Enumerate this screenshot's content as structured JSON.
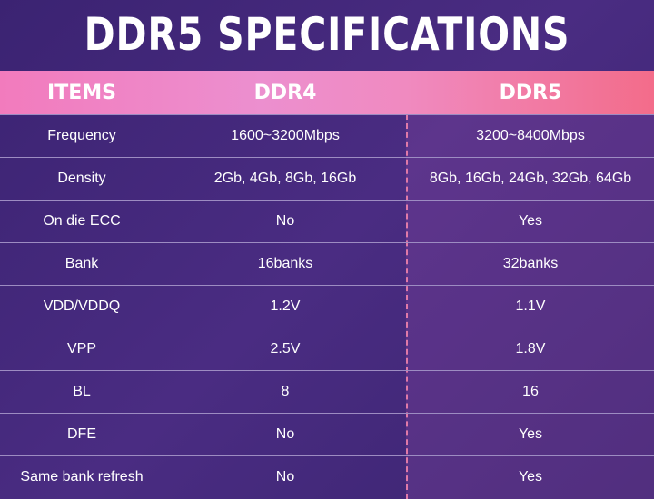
{
  "header": {
    "title": "DDR5 SPECIFICATIONS"
  },
  "table": {
    "columns": [
      "ITEMS",
      "DDR4",
      "DDR5"
    ],
    "rows": [
      [
        "Frequency",
        "1600~3200Mbps",
        "3200~8400Mbps"
      ],
      [
        "Density",
        "2Gb, 4Gb, 8Gb, 16Gb",
        "8Gb, 16Gb, 24Gb, 32Gb, 64Gb"
      ],
      [
        "On die ECC",
        "No",
        "Yes"
      ],
      [
        "Bank",
        "16banks",
        "32banks"
      ],
      [
        "VDD/VDDQ",
        "1.2V",
        "1.1V"
      ],
      [
        "VPP",
        "2.5V",
        "1.8V"
      ],
      [
        "BL",
        "8",
        "16"
      ],
      [
        "DFE",
        "No",
        "Yes"
      ],
      [
        "Same bank refresh",
        "No",
        "Yes"
      ]
    ]
  }
}
